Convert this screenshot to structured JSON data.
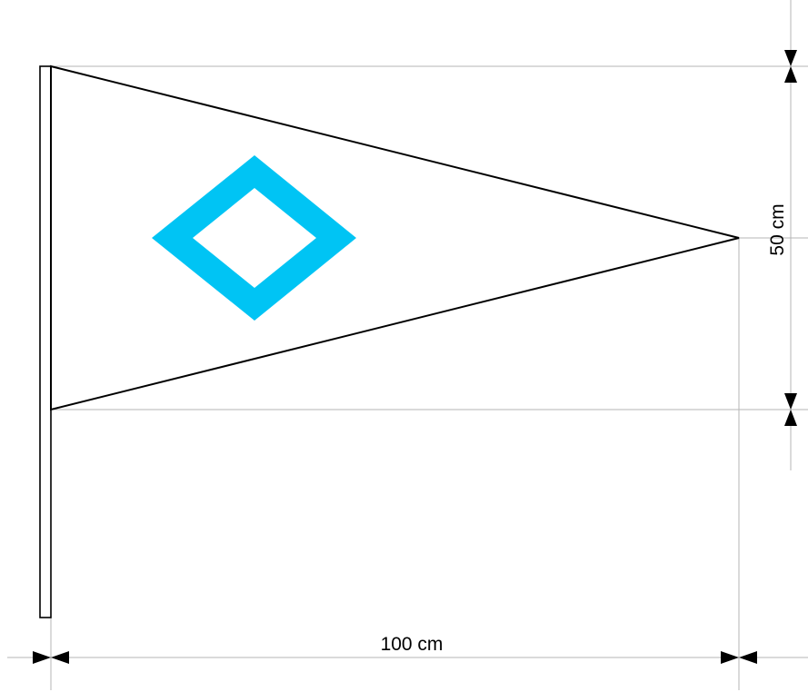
{
  "dimensions": {
    "width_label": "100 cm",
    "height_label": "50 cm"
  },
  "colors": {
    "diamond": "#00c4f4",
    "outline": "#000000",
    "guide": "#b5b5b5",
    "background": "#ffffff"
  }
}
